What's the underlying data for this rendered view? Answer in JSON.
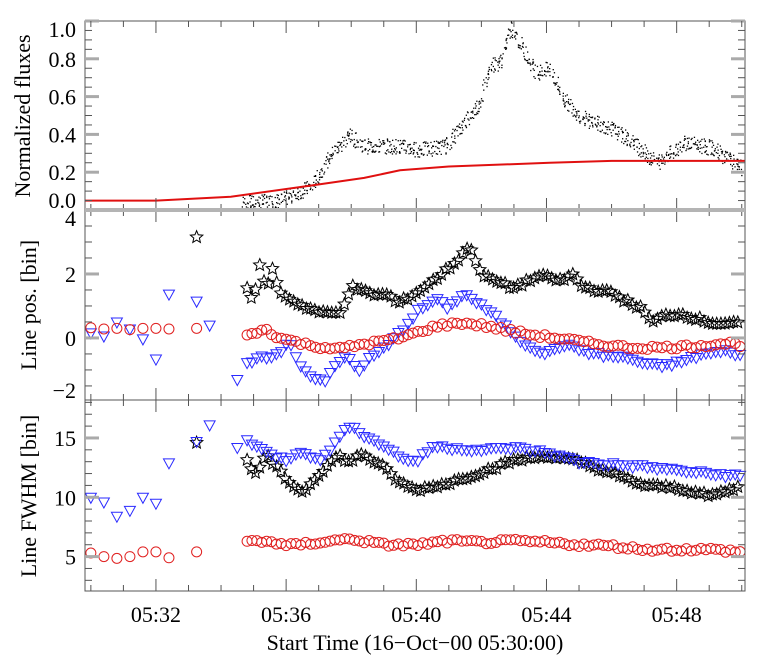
{
  "chart_data": [
    {
      "type": "scatter",
      "panel": "flux",
      "ylabel": "Normalized fluxes",
      "ylim": [
        0,
        1.0
      ],
      "yticks": [
        "0.0",
        "0.2",
        "0.4",
        "0.6",
        "0.8",
        "1.0"
      ],
      "ytick_values": [
        0,
        0.2,
        0.4,
        0.6,
        0.8,
        1.0
      ],
      "x_units": "minutes after 05:30:00",
      "series": [
        {
          "name": "flux (black dots)",
          "color": "#000000",
          "style": "dots",
          "cadence_min": 0.03,
          "x": [
            4.67,
            5.8,
            6.8,
            7.35,
            7.95,
            8.37,
            9.4,
            10.1,
            10.9,
            11.4,
            11.95,
            12.25,
            12.56,
            12.93,
            13.3,
            13.7,
            14.1,
            14.5,
            15.1,
            16.0,
            16.65,
            17.4,
            18.2,
            19.1,
            20.0
          ],
          "y": [
            0.04,
            0.05,
            0.13,
            0.29,
            0.4,
            0.34,
            0.34,
            0.32,
            0.34,
            0.45,
            0.57,
            0.77,
            0.78,
            0.97,
            0.84,
            0.73,
            0.75,
            0.59,
            0.49,
            0.43,
            0.36,
            0.25,
            0.36,
            0.33,
            0.22
          ]
        },
        {
          "name": "flux (red line)",
          "color": "#e01010",
          "style": "line",
          "x": [
            -0.2,
            2.0,
            4.3,
            6.8,
            8.4,
            9.5,
            11.0,
            14.1,
            16.0,
            20.1
          ],
          "y": [
            0.05,
            0.05,
            0.07,
            0.13,
            0.17,
            0.21,
            0.23,
            0.25,
            0.26,
            0.26
          ]
        }
      ]
    },
    {
      "type": "scatter",
      "panel": "line-position",
      "ylabel": "Line pos. [bin]",
      "ylim": [
        -1.94,
        4.0
      ],
      "yticks": [
        "−2",
        "0",
        "2",
        "4"
      ],
      "ytick_values": [
        -2,
        0,
        2,
        4
      ],
      "series": [
        {
          "name": "stars",
          "marker": "star",
          "color": "#000000",
          "sparse_x": [
            3.25
          ],
          "sparse_y": [
            3.15
          ],
          "cadence_min": 0.13,
          "x": [
            4.8,
            5.0,
            5.2,
            5.4,
            5.6,
            5.8,
            6.5,
            7.1,
            7.65,
            8.0,
            8.6,
            9.2,
            9.4,
            10.0,
            10.6,
            11.25,
            11.6,
            11.85,
            12.05,
            12.96,
            13.8,
            14.5,
            14.8,
            15.1,
            16.0,
            16.55,
            16.95,
            17.25,
            17.6,
            18.1,
            19.1,
            19.9
          ],
          "y": [
            1.6,
            1.1,
            2.3,
            1.5,
            2.2,
            1.4,
            1.0,
            0.78,
            0.78,
            1.6,
            1.37,
            1.33,
            1.06,
            1.4,
            1.84,
            2.4,
            2.87,
            2.4,
            1.94,
            1.56,
            1.94,
            1.78,
            2.0,
            1.6,
            1.4,
            1.1,
            0.9,
            0.47,
            0.69,
            0.75,
            0.47,
            0.44
          ]
        },
        {
          "name": "triangles",
          "marker": "triangle-down",
          "color": "#2a2aff",
          "sparse_x": [
            0,
            0.4,
            0.8,
            1.2,
            1.6,
            2.0,
            2.4,
            3.25,
            3.65,
            4.5
          ],
          "sparse_y": [
            0.16,
            0.06,
            0.5,
            0.28,
            -0.03,
            -0.66,
            1.37,
            1.15,
            0.4,
            -1.3
          ],
          "cadence_min": 0.15,
          "x": [
            4.8,
            5.3,
            5.8,
            6.1,
            6.5,
            6.95,
            7.25,
            7.55,
            7.9,
            8.2,
            8.55,
            9.1,
            9.6,
            10.05,
            10.6,
            11.0,
            11.45,
            11.75,
            12.35,
            12.9,
            13.3,
            14.0,
            14.5,
            15.5,
            16.55,
            17.05,
            17.55,
            18.1,
            18.8,
            19.6,
            20.0
          ],
          "y": [
            -0.8,
            -0.6,
            -0.5,
            -0.1,
            -0.97,
            -1.28,
            -1.3,
            -0.8,
            -0.56,
            -1.03,
            -0.66,
            -0.25,
            0.3,
            0.84,
            1.22,
            0.94,
            1.4,
            1.2,
            0.75,
            0.22,
            -0.16,
            -0.5,
            -0.19,
            -0.5,
            -0.63,
            -0.81,
            -0.87,
            -0.75,
            -0.5,
            -0.4,
            -0.55
          ]
        },
        {
          "name": "circles",
          "marker": "circle",
          "color": "#e02020",
          "sparse_x": [
            0,
            0.4,
            0.8,
            1.2,
            1.6,
            2.0,
            2.4,
            3.25
          ],
          "sparse_y": [
            0.32,
            0.28,
            0.3,
            0.26,
            0.3,
            0.3,
            0.28,
            0.3
          ],
          "cadence_min": 0.15,
          "x": [
            4.8,
            5.35,
            5.8,
            6.8,
            7.65,
            8.4,
            9.4,
            10.0,
            10.6,
            11.4,
            12.0,
            12.6,
            13.4,
            14.5,
            15.5,
            16.55,
            17.6,
            18.6,
            19.6,
            20.0
          ],
          "y": [
            0.06,
            0.28,
            0.0,
            -0.25,
            -0.34,
            -0.19,
            -0.03,
            0.16,
            0.37,
            0.47,
            0.4,
            0.28,
            0.12,
            -0.03,
            -0.19,
            -0.3,
            -0.3,
            -0.25,
            -0.16,
            -0.22
          ]
        }
      ]
    },
    {
      "type": "scatter",
      "panel": "line-fwhm",
      "ylabel": "Line FWHM [bin]",
      "xlabel": "Start Time (16−Oct−00 05:30:00)",
      "ylim": [
        2.1,
        18.2
      ],
      "yticks": [
        "5",
        "10",
        "15"
      ],
      "ytick_values": [
        5,
        10,
        15
      ],
      "xlim": [
        -0.18,
        20.1
      ],
      "xticks": [
        "05:32",
        "05:36",
        "05:40",
        "05:44",
        "05:48"
      ],
      "xtick_values": [
        2,
        6,
        10,
        14,
        18
      ],
      "series": [
        {
          "name": "stars",
          "marker": "star",
          "color": "#000000",
          "sparse_x": [
            3.25
          ],
          "sparse_y": [
            14.6
          ],
          "cadence_min": 0.13,
          "x": [
            4.8,
            5.0,
            5.4,
            6.0,
            6.5,
            7.2,
            7.6,
            8.0,
            8.3,
            9.0,
            9.5,
            10.0,
            11.0,
            12.0,
            13.0,
            14.0,
            15.0,
            16.0,
            17.0,
            18.0,
            19.0,
            20.0
          ],
          "y": [
            13.2,
            11.7,
            13.5,
            11.5,
            10.4,
            12.5,
            13.5,
            12.9,
            13.7,
            12.5,
            11.2,
            10.6,
            11.2,
            12.1,
            13.1,
            13.5,
            13.0,
            12.0,
            11.0,
            10.8,
            10.1,
            10.9
          ]
        },
        {
          "name": "triangles",
          "marker": "triangle-down",
          "color": "#2a2aff",
          "sparse_x": [
            0,
            0.4,
            0.8,
            1.2,
            1.6,
            2.0,
            2.4,
            3.25,
            3.65,
            4.5
          ],
          "sparse_y": [
            10.0,
            9.6,
            8.4,
            8.9,
            10.0,
            9.5,
            12.9,
            14.7,
            16.1,
            14.2
          ],
          "cadence_min": 0.15,
          "x": [
            4.8,
            5.5,
            6.0,
            6.5,
            7.0,
            7.5,
            8.0,
            8.5,
            9.0,
            9.5,
            10.0,
            10.5,
            12.0,
            13.0,
            14.0,
            15.0,
            16.0,
            17.0,
            18.0,
            19.0,
            20.0
          ],
          "y": [
            14.9,
            13.6,
            13.2,
            14.0,
            13.0,
            14.6,
            16.2,
            15.0,
            14.4,
            13.4,
            13.0,
            14.3,
            14.0,
            14.2,
            13.8,
            13.0,
            12.8,
            12.6,
            12.3,
            12.0,
            11.8
          ]
        },
        {
          "name": "circles",
          "marker": "circle",
          "color": "#e02020",
          "sparse_x": [
            0,
            0.4,
            0.8,
            1.2,
            1.6,
            2.0,
            2.4,
            3.25
          ],
          "sparse_y": [
            5.3,
            5.0,
            4.85,
            5.0,
            5.4,
            5.4,
            4.9,
            5.4
          ],
          "cadence_min": 0.15,
          "x": [
            4.8,
            5.5,
            6.0,
            7.0,
            8.0,
            9.0,
            10.0,
            11.0,
            12.0,
            13.0,
            14.0,
            15.0,
            16.0,
            17.0,
            18.0,
            19.0,
            20.0
          ],
          "y": [
            6.3,
            6.3,
            5.9,
            6.2,
            6.5,
            6.0,
            6.0,
            6.3,
            6.2,
            6.3,
            6.2,
            6.0,
            5.9,
            5.6,
            5.6,
            5.6,
            5.4
          ]
        }
      ]
    }
  ]
}
